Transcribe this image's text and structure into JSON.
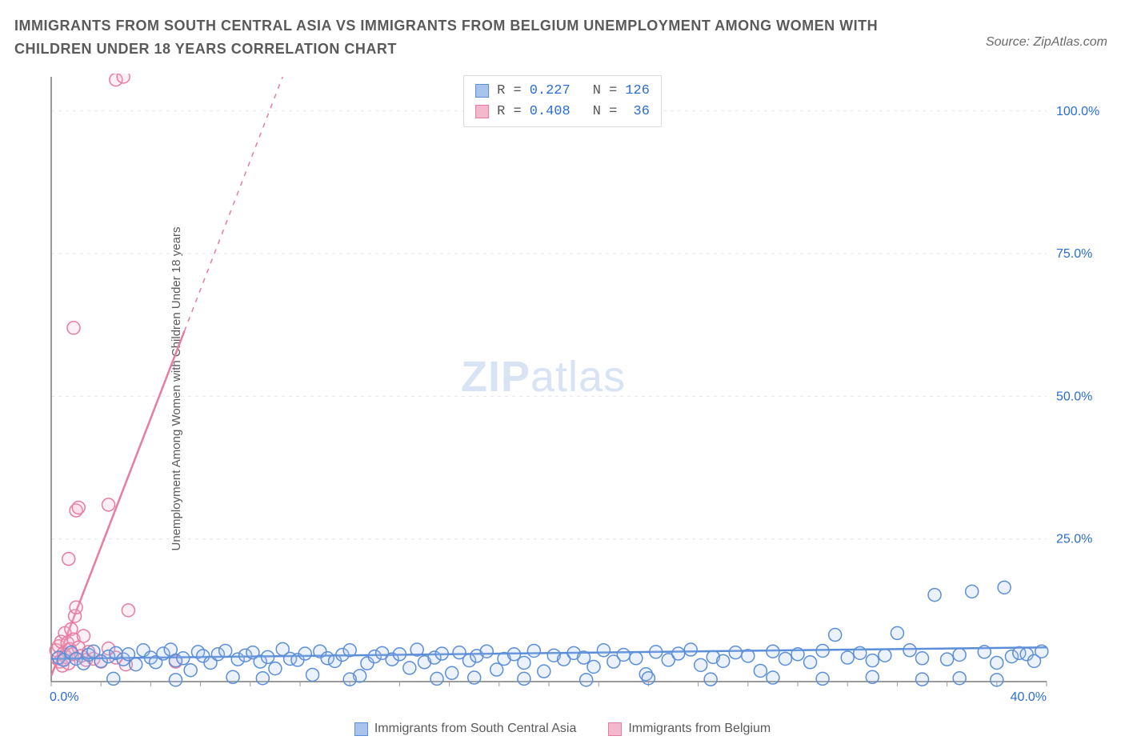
{
  "title": "IMMIGRANTS FROM SOUTH CENTRAL ASIA VS IMMIGRANTS FROM BELGIUM UNEMPLOYMENT AMONG WOMEN WITH CHILDREN UNDER 18 YEARS CORRELATION CHART",
  "source_label": "Source: ZipAtlas.com",
  "ylabel": "Unemployment Among Women with Children Under 18 years",
  "watermark": {
    "zip": "ZIP",
    "atlas": "atlas",
    "color": "#b9cdea",
    "opacity": 0.55
  },
  "chart": {
    "type": "scatter-correlation",
    "background_color": "#ffffff",
    "grid_color": "#e5e5e5",
    "axis_color": "#7a7a7a",
    "tick_color": "#9a9a9a",
    "marker_radius": 8,
    "marker_stroke_width": 1.5,
    "marker_fill_opacity": 0.22,
    "trend_line_width": 2.5,
    "xlim": [
      0,
      40
    ],
    "ylim": [
      0,
      106
    ],
    "yticks": [
      {
        "v": 25,
        "label": "25.0%"
      },
      {
        "v": 50,
        "label": "50.0%"
      },
      {
        "v": 75,
        "label": "75.0%"
      },
      {
        "v": 100,
        "label": "100.0%"
      }
    ],
    "xtick_left": {
      "v": 0,
      "label": "0.0%",
      "color": "#2a6dd6"
    },
    "xtick_right": {
      "v": 40,
      "label": "40.0%",
      "color": "#2a6dd6"
    },
    "xminor_step": 2,
    "series": {
      "asia": {
        "label": "Immigrants from South Central Asia",
        "color": "#5b8ed9",
        "fill": "#a8c4ec",
        "R": "0.227",
        "N": "126",
        "trend": {
          "x1": 0,
          "y1": 4.0,
          "x2": 40,
          "y2": 6.0,
          "dash_after_x": null
        },
        "points": [
          [
            0.3,
            4.2
          ],
          [
            0.5,
            3.8
          ],
          [
            0.8,
            5.1
          ],
          [
            1.0,
            4.0
          ],
          [
            1.3,
            3.2
          ],
          [
            1.5,
            4.7
          ],
          [
            1.7,
            5.3
          ],
          [
            2.0,
            3.6
          ],
          [
            2.3,
            4.4
          ],
          [
            2.6,
            5.0
          ],
          [
            2.9,
            3.9
          ],
          [
            3.1,
            4.8
          ],
          [
            3.4,
            3.0
          ],
          [
            3.7,
            5.5
          ],
          [
            4.0,
            4.2
          ],
          [
            4.2,
            3.4
          ],
          [
            4.5,
            4.9
          ],
          [
            4.8,
            5.6
          ],
          [
            5.0,
            3.7
          ],
          [
            5.3,
            4.1
          ],
          [
            5.6,
            2.0
          ],
          [
            5.9,
            5.2
          ],
          [
            6.1,
            4.5
          ],
          [
            6.4,
            3.3
          ],
          [
            6.7,
            4.8
          ],
          [
            7.0,
            5.4
          ],
          [
            7.3,
            0.8
          ],
          [
            7.5,
            3.9
          ],
          [
            7.8,
            4.6
          ],
          [
            8.1,
            5.1
          ],
          [
            8.4,
            3.5
          ],
          [
            8.7,
            4.3
          ],
          [
            9.0,
            2.3
          ],
          [
            9.3,
            5.7
          ],
          [
            9.6,
            4.0
          ],
          [
            9.9,
            3.8
          ],
          [
            10.2,
            4.9
          ],
          [
            10.5,
            1.2
          ],
          [
            10.8,
            5.3
          ],
          [
            11.1,
            4.1
          ],
          [
            11.4,
            3.6
          ],
          [
            11.7,
            4.7
          ],
          [
            12.0,
            5.5
          ],
          [
            12.4,
            1.0
          ],
          [
            12.7,
            3.2
          ],
          [
            13.0,
            4.4
          ],
          [
            13.3,
            5.0
          ],
          [
            13.7,
            3.9
          ],
          [
            14.0,
            4.8
          ],
          [
            14.4,
            2.4
          ],
          [
            14.7,
            5.6
          ],
          [
            15.0,
            3.4
          ],
          [
            15.4,
            4.2
          ],
          [
            15.7,
            4.9
          ],
          [
            16.1,
            1.5
          ],
          [
            16.4,
            5.1
          ],
          [
            16.8,
            3.7
          ],
          [
            17.1,
            4.5
          ],
          [
            17.5,
            5.3
          ],
          [
            17.9,
            2.1
          ],
          [
            18.2,
            4.0
          ],
          [
            18.6,
            4.8
          ],
          [
            19.0,
            3.3
          ],
          [
            19.4,
            5.4
          ],
          [
            19.8,
            1.8
          ],
          [
            20.2,
            4.6
          ],
          [
            20.6,
            3.9
          ],
          [
            21.0,
            5.0
          ],
          [
            21.4,
            4.2
          ],
          [
            21.8,
            2.6
          ],
          [
            22.2,
            5.5
          ],
          [
            22.6,
            3.5
          ],
          [
            23.0,
            4.7
          ],
          [
            23.5,
            4.1
          ],
          [
            23.9,
            1.3
          ],
          [
            24.3,
            5.2
          ],
          [
            24.8,
            3.8
          ],
          [
            25.2,
            4.9
          ],
          [
            25.7,
            5.6
          ],
          [
            26.1,
            2.9
          ],
          [
            26.6,
            4.3
          ],
          [
            27.0,
            3.6
          ],
          [
            27.5,
            5.1
          ],
          [
            28.0,
            4.5
          ],
          [
            28.5,
            1.9
          ],
          [
            29.0,
            5.3
          ],
          [
            29.5,
            4.0
          ],
          [
            30.0,
            4.8
          ],
          [
            30.5,
            3.4
          ],
          [
            31.0,
            5.4
          ],
          [
            31.5,
            8.2
          ],
          [
            32.0,
            4.2
          ],
          [
            32.5,
            5.0
          ],
          [
            33.0,
            3.7
          ],
          [
            33.5,
            4.6
          ],
          [
            34.0,
            8.5
          ],
          [
            34.5,
            5.5
          ],
          [
            35.0,
            4.1
          ],
          [
            35.5,
            15.2
          ],
          [
            36.0,
            3.9
          ],
          [
            36.5,
            4.7
          ],
          [
            37.0,
            15.8
          ],
          [
            37.5,
            5.2
          ],
          [
            38.0,
            3.3
          ],
          [
            38.3,
            16.5
          ],
          [
            38.6,
            4.4
          ],
          [
            38.9,
            5.0
          ],
          [
            39.2,
            4.8
          ],
          [
            39.5,
            3.6
          ],
          [
            39.8,
            5.3
          ],
          [
            19.0,
            0.5
          ],
          [
            21.5,
            0.3
          ],
          [
            24.0,
            0.6
          ],
          [
            26.5,
            0.4
          ],
          [
            29.0,
            0.7
          ],
          [
            31.0,
            0.5
          ],
          [
            33.0,
            0.8
          ],
          [
            35.0,
            0.4
          ],
          [
            36.5,
            0.6
          ],
          [
            38.0,
            0.3
          ],
          [
            15.5,
            0.5
          ],
          [
            12.0,
            0.4
          ],
          [
            8.5,
            0.6
          ],
          [
            5.0,
            0.3
          ],
          [
            2.5,
            0.5
          ],
          [
            17.0,
            0.7
          ]
        ]
      },
      "belgium": {
        "label": "Immigrants from Belgium",
        "color": "#e77ba1",
        "fill": "#f4b8cd",
        "R": "0.408",
        "N": "36",
        "trend": {
          "x1": 0,
          "y1": 1.0,
          "x2": 9.3,
          "y2": 106,
          "dash_after_x": 5.35
        },
        "points": [
          [
            0.2,
            5.5
          ],
          [
            0.25,
            4.0
          ],
          [
            0.3,
            6.2
          ],
          [
            0.35,
            3.5
          ],
          [
            0.4,
            7.0
          ],
          [
            0.45,
            2.8
          ],
          [
            0.5,
            5.0
          ],
          [
            0.55,
            8.5
          ],
          [
            0.6,
            4.3
          ],
          [
            0.65,
            6.8
          ],
          [
            0.7,
            3.2
          ],
          [
            0.75,
            5.7
          ],
          [
            0.8,
            9.2
          ],
          [
            0.85,
            4.8
          ],
          [
            0.9,
            7.4
          ],
          [
            0.95,
            11.5
          ],
          [
            1.0,
            13.0
          ],
          [
            1.1,
            6.0
          ],
          [
            1.2,
            4.5
          ],
          [
            1.3,
            8.0
          ],
          [
            1.4,
            3.8
          ],
          [
            1.5,
            5.2
          ],
          [
            1.7,
            4.0
          ],
          [
            2.0,
            3.5
          ],
          [
            2.3,
            5.8
          ],
          [
            2.6,
            4.2
          ],
          [
            3.0,
            3.0
          ],
          [
            0.7,
            21.5
          ],
          [
            1.0,
            30.0
          ],
          [
            1.1,
            30.5
          ],
          [
            2.3,
            31.0
          ],
          [
            3.1,
            12.5
          ],
          [
            0.9,
            62.0
          ],
          [
            2.6,
            105.5
          ],
          [
            2.9,
            106.0
          ],
          [
            5.0,
            3.5
          ]
        ]
      }
    }
  },
  "legend_bottom": [
    {
      "key": "asia"
    },
    {
      "key": "belgium"
    }
  ]
}
